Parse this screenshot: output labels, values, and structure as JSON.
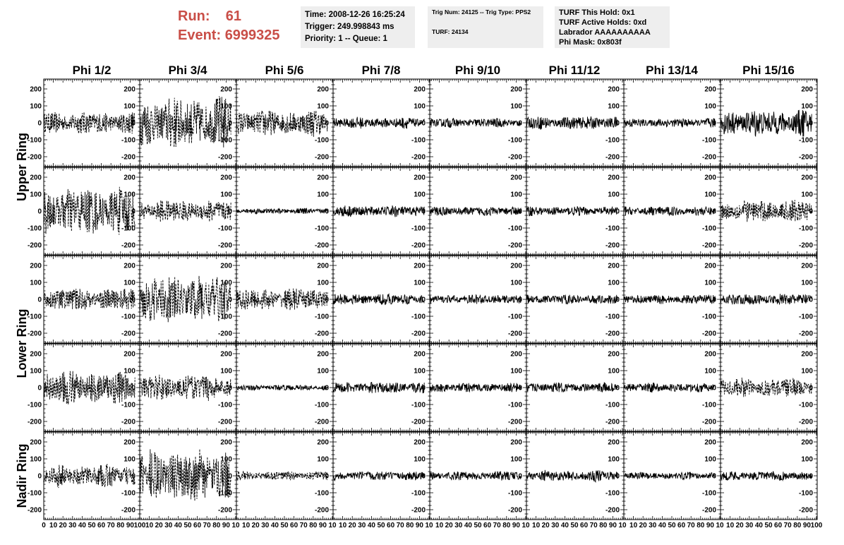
{
  "header": {
    "run_label": "Run:",
    "run_value": "61",
    "event_label": "Event:",
    "event_value": "6999325"
  },
  "info_box_1": {
    "time": "Time: 2008-12-26 16:25:24",
    "trigger": "Trigger: 249.998843 ms",
    "priority": "Priority: 1 -- Queue: 1"
  },
  "info_box_2": {
    "trig": "Trig Num: 24125 -- Trig Type: PPS2",
    "turf": "TURF: 24134"
  },
  "info_box_3": {
    "hold": "TURF This Hold: 0x1",
    "active": "TURF Active Holds: 0xd",
    "labrador": "Labrador AAAAAAAAAA",
    "phimask": "Phi Mask: 0x803f"
  },
  "colors": {
    "header_red": "#c94e47",
    "box_bg": "#eeeeee",
    "trace": "#000000"
  },
  "chart_data": {
    "type": "line",
    "columns": [
      "Phi 1/2",
      "Phi 3/4",
      "Phi 5/6",
      "Phi 7/8",
      "Phi 9/10",
      "Phi 11/12",
      "Phi 13/14",
      "Phi 15/16"
    ],
    "rows": [
      "Upper Ring",
      "Lower Ring",
      "Nadir Ring"
    ],
    "row_group_labels": [
      {
        "label": "Upper Ring",
        "panel_rows": [
          0,
          1
        ]
      },
      {
        "label": "Lower Ring",
        "panel_rows": [
          2,
          3
        ]
      },
      {
        "label": "Nadir Ring",
        "panel_rows": [
          4
        ]
      }
    ],
    "ylim": [
      -250,
      250
    ],
    "yticks": [
      -200,
      -100,
      0,
      100,
      200
    ],
    "xlim": [
      0,
      100
    ],
    "xticks": [
      0,
      10,
      20,
      30,
      40,
      50,
      60,
      70,
      80,
      90,
      100
    ],
    "x_tick_labels": [
      "0",
      "10",
      "20",
      "30",
      "40",
      "50",
      "60",
      "70",
      "80",
      "90",
      "100"
    ],
    "x_tick_labels_inner": [
      "10",
      "20",
      "30",
      "40",
      "50",
      "60",
      "70",
      "80",
      "90",
      "10"
    ],
    "trace_xrange": [
      0,
      95
    ],
    "amplitudes": [
      [
        60,
        140,
        70,
        30,
        25,
        35,
        25,
        70
      ],
      [
        130,
        60,
        15,
        30,
        25,
        25,
        25,
        60
      ],
      [
        60,
        130,
        60,
        30,
        25,
        25,
        25,
        30
      ],
      [
        90,
        70,
        15,
        30,
        25,
        25,
        25,
        50
      ],
      [
        60,
        140,
        25,
        25,
        25,
        30,
        20,
        25
      ]
    ],
    "dashed": [
      [
        true,
        true,
        true,
        false,
        false,
        false,
        false,
        false
      ],
      [
        true,
        true,
        false,
        false,
        false,
        false,
        false,
        true
      ],
      [
        true,
        true,
        true,
        false,
        false,
        false,
        false,
        false
      ],
      [
        true,
        true,
        false,
        false,
        false,
        false,
        false,
        true
      ],
      [
        true,
        true,
        true,
        false,
        false,
        false,
        false,
        false
      ]
    ]
  }
}
